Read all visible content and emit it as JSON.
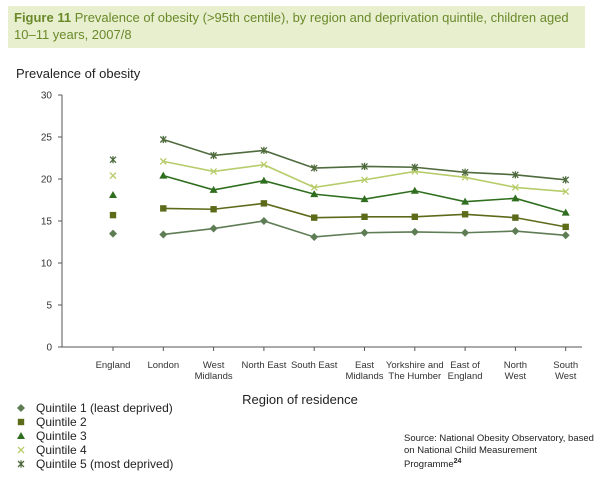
{
  "figure": {
    "label": "Figure 11",
    "caption": "Prevalence of obesity (>95th centile), by region and deprivation quintile, children aged 10–11 years, 2007/8"
  },
  "source": {
    "text": "Source: National Obesity Observatory, based on National Child Measurement Programme",
    "superscript": "24"
  },
  "colors": {
    "title_bg": "#e8efcf",
    "title_text": "#6a8a2a",
    "quintile_1": "#5f7d55",
    "quintile_2": "#5c6b1a",
    "quintile_3": "#2f6e1e",
    "quintile_4": "#b7cc6a",
    "quintile_5": "#4f6b3e"
  },
  "chart_data": {
    "type": "line",
    "ylabel": "Prevalence of obesity",
    "xlabel": "Region of residence",
    "ylim": [
      0,
      30
    ],
    "yticks": [
      0,
      5,
      10,
      15,
      20,
      25,
      30
    ],
    "grid": false,
    "legend_position": "bottom-left",
    "categories": [
      "England",
      "London",
      "West\nMidlands",
      "North East",
      "South East",
      "East\nMidlands",
      "Yorkshire and\nThe Humber",
      "East of\nEngland",
      "North\nWest",
      "South\nWest"
    ],
    "series": [
      {
        "name": "Quintile 1 (least deprived)",
        "marker": "diamond",
        "color": "#5f7d55",
        "values": [
          13.5,
          13.4,
          14.1,
          15.0,
          13.1,
          13.6,
          13.7,
          13.6,
          13.8,
          13.3
        ]
      },
      {
        "name": "Quintile 2",
        "marker": "square",
        "color": "#5c6b1a",
        "values": [
          15.7,
          16.5,
          16.4,
          17.1,
          15.4,
          15.5,
          15.5,
          15.8,
          15.4,
          14.3
        ]
      },
      {
        "name": "Quintile 3",
        "marker": "triangle",
        "color": "#2f6e1e",
        "values": [
          18.1,
          20.4,
          18.7,
          19.8,
          18.2,
          17.6,
          18.6,
          17.3,
          17.7,
          16.0
        ]
      },
      {
        "name": "Quintile 4",
        "marker": "x",
        "color": "#b7cc6a",
        "values": [
          20.4,
          22.1,
          20.9,
          21.7,
          19.0,
          19.9,
          20.9,
          20.2,
          19.0,
          18.5
        ]
      },
      {
        "name": "Quintile 5 (most deprived)",
        "marker": "star",
        "color": "#4f6b3e",
        "values": [
          22.3,
          24.7,
          22.8,
          23.4,
          21.3,
          21.5,
          21.4,
          20.8,
          20.5,
          19.9
        ]
      }
    ],
    "note": "England shown as markers only; regions connected by lines"
  }
}
